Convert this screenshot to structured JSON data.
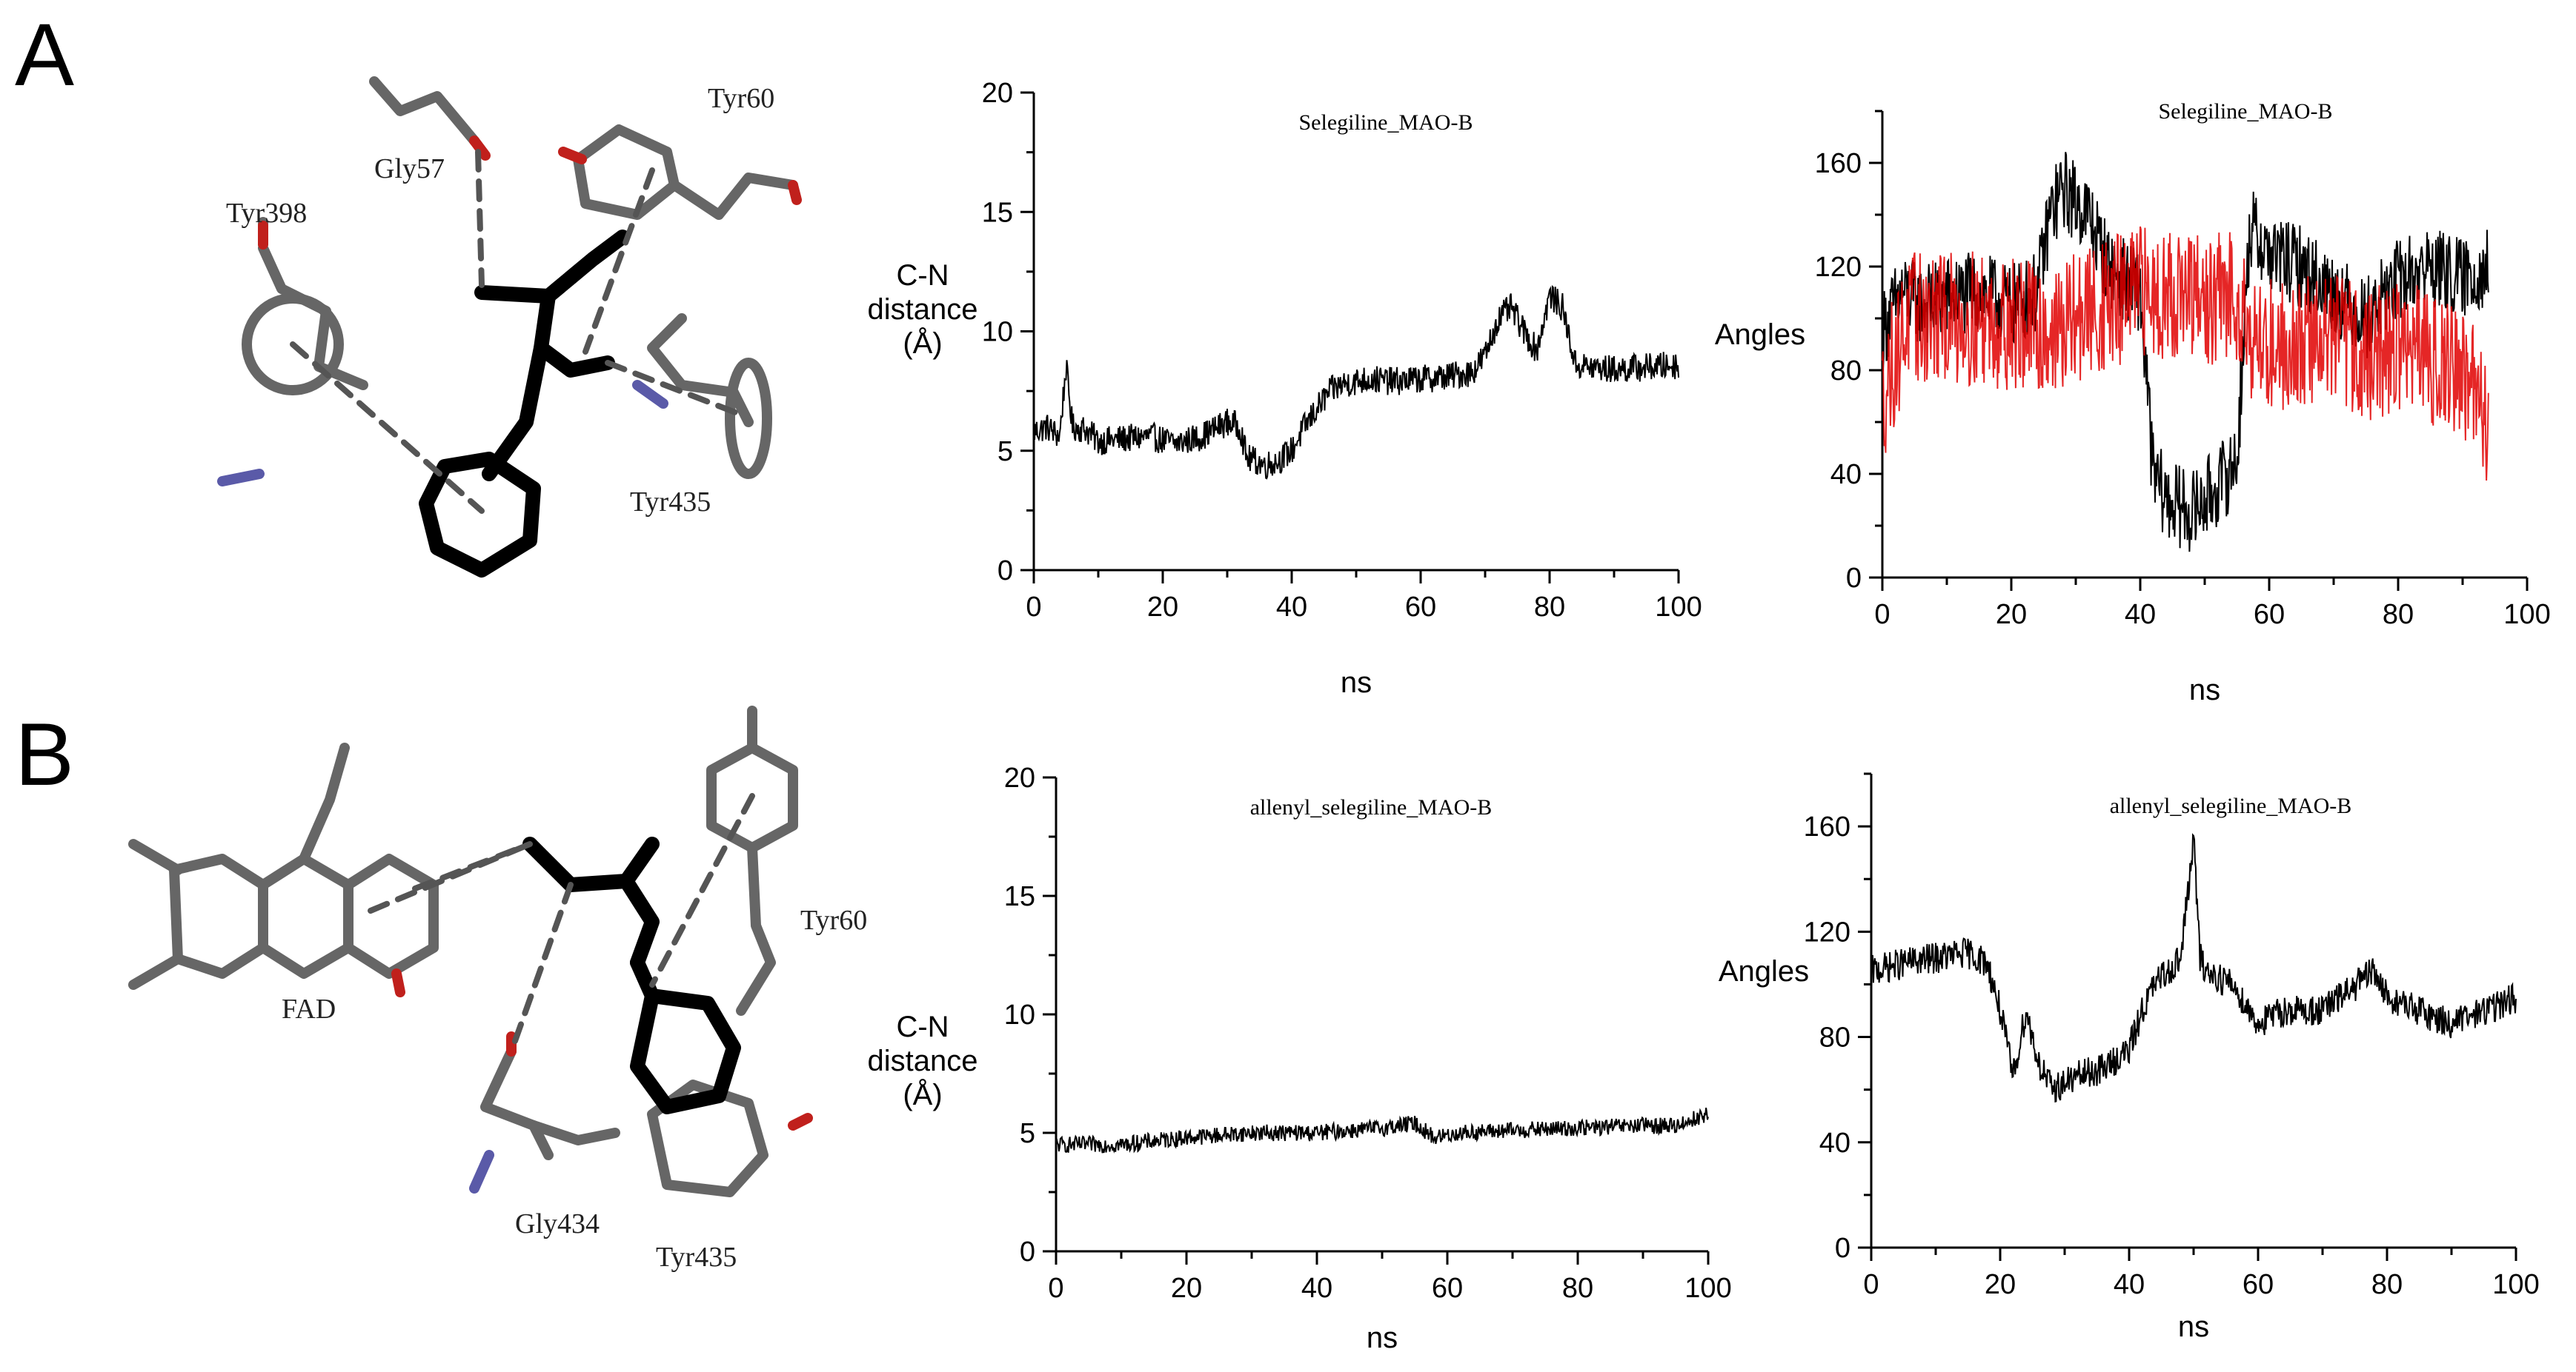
{
  "panels": [
    {
      "letter": "A",
      "residues": [
        "Gly57",
        "Tyr60",
        "Tyr398",
        "Tyr435"
      ]
    },
    {
      "letter": "B",
      "residues": [
        "FAD",
        "Tyr60",
        "Gly434",
        "Tyr435"
      ]
    }
  ],
  "colors": {
    "series_black": "#000000",
    "series_red": "#e00000",
    "nitrogen": "#5a5aa8",
    "oxygen": "#c0201c",
    "bond": "#555555"
  },
  "chart_data": [
    {
      "id": "A_distance",
      "type": "line",
      "title": "Selegiline_MAO-B",
      "xlabel": "ns",
      "ylabel": [
        "C-N",
        "distance",
        "(Å)"
      ],
      "xlim": [
        0,
        100
      ],
      "ylim": [
        0,
        20
      ],
      "xticks": [
        0,
        20,
        40,
        60,
        80,
        100
      ],
      "yticks": [
        0,
        5,
        10,
        15,
        20
      ],
      "series": [
        {
          "color": "#000000",
          "noise": 0.6,
          "x": [
            0,
            2,
            4,
            5,
            6,
            8,
            10,
            14,
            18,
            22,
            26,
            30,
            32,
            33,
            36,
            38,
            40,
            42,
            44,
            46,
            48,
            52,
            56,
            60,
            64,
            68,
            70,
            72,
            74,
            76,
            78,
            80,
            82,
            84,
            86,
            90,
            95,
            100
          ],
          "y": [
            5.8,
            6.0,
            5.6,
            8.5,
            6.0,
            5.9,
            5.4,
            5.5,
            5.6,
            5.3,
            5.6,
            6.2,
            6.0,
            4.7,
            4.4,
            4.6,
            5.0,
            6.0,
            6.8,
            7.5,
            7.8,
            8.0,
            7.9,
            8.0,
            8.1,
            8.3,
            9.0,
            10.5,
            11.0,
            10.0,
            9.2,
            11.5,
            11.0,
            8.6,
            8.5,
            8.4,
            8.5,
            8.6
          ]
        }
      ]
    },
    {
      "id": "A_angles",
      "type": "line",
      "title": "Selegiline_MAO-B",
      "xlabel": "ns",
      "ylabel": [
        "Angles"
      ],
      "xlim": [
        0,
        100
      ],
      "ylim": [
        0,
        180
      ],
      "xticks": [
        0,
        20,
        40,
        60,
        80,
        100
      ],
      "yticks": [
        0,
        40,
        80,
        120,
        160
      ],
      "series": [
        {
          "color": "#000000",
          "noise": 16,
          "x": [
            0,
            3,
            6,
            10,
            15,
            20,
            24,
            26,
            28,
            32,
            35,
            40,
            42,
            44,
            48,
            52,
            55,
            57,
            60,
            65,
            70,
            75,
            80,
            85,
            90,
            94
          ],
          "y": [
            95,
            110,
            105,
            108,
            110,
            105,
            110,
            140,
            150,
            140,
            120,
            110,
            40,
            30,
            25,
            35,
            45,
            135,
            125,
            120,
            110,
            100,
            115,
            120,
            115,
            120
          ]
        },
        {
          "color": "#e00000",
          "noise": 26,
          "x": [
            0,
            4,
            8,
            15,
            20,
            25,
            28,
            30,
            35,
            40,
            45,
            50,
            55,
            58,
            60,
            65,
            70,
            75,
            80,
            85,
            90,
            94
          ],
          "y": [
            70,
            100,
            100,
            100,
            98,
            95,
            95,
            100,
            105,
            110,
            110,
            105,
            110,
            90,
            90,
            90,
            95,
            85,
            90,
            85,
            80,
            60
          ]
        }
      ]
    },
    {
      "id": "B_distance",
      "type": "line",
      "title": "allenyl_selegiline_MAO-B",
      "xlabel": "ns",
      "ylabel": [
        "C-N",
        "distance",
        "(Å)"
      ],
      "xlim": [
        0,
        100
      ],
      "ylim": [
        0,
        20
      ],
      "xticks": [
        0,
        20,
        40,
        60,
        80,
        100
      ],
      "yticks": [
        0,
        5,
        10,
        15,
        20
      ],
      "series": [
        {
          "color": "#000000",
          "noise": 0.35,
          "x": [
            0,
            10,
            20,
            30,
            40,
            50,
            55,
            58,
            62,
            70,
            80,
            90,
            95,
            100
          ],
          "y": [
            4.5,
            4.5,
            4.8,
            5.0,
            5.0,
            5.2,
            5.4,
            4.8,
            5.0,
            5.1,
            5.2,
            5.3,
            5.3,
            5.8
          ]
        }
      ]
    },
    {
      "id": "B_angles",
      "type": "line",
      "title": "allenyl_selegiline_MAO-B",
      "xlabel": "ns",
      "ylabel": [
        "Angles"
      ],
      "xlim": [
        0,
        100
      ],
      "ylim": [
        0,
        180
      ],
      "xticks": [
        0,
        20,
        40,
        60,
        80,
        100
      ],
      "yticks": [
        0,
        40,
        80,
        120,
        160
      ],
      "series": [
        {
          "color": "#000000",
          "noise": 6,
          "x": [
            0,
            5,
            10,
            15,
            18,
            20,
            22,
            24,
            26,
            28,
            32,
            36,
            40,
            42,
            44,
            48,
            50,
            51,
            52,
            56,
            60,
            64,
            70,
            78,
            80,
            85,
            90,
            95,
            100
          ],
          "y": [
            105,
            108,
            110,
            112,
            108,
            90,
            65,
            90,
            70,
            60,
            65,
            68,
            75,
            90,
            100,
            110,
            155,
            110,
            105,
            100,
            85,
            90,
            90,
            105,
            95,
            90,
            85,
            90,
            95
          ]
        }
      ]
    }
  ]
}
